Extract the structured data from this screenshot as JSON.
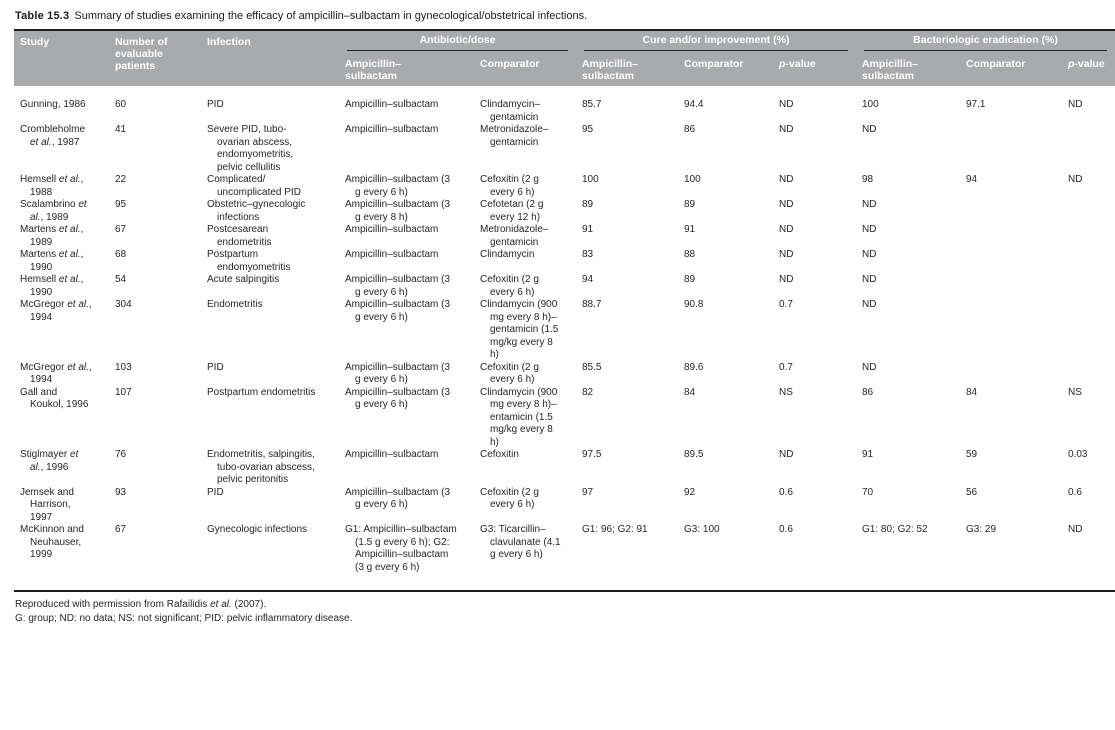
{
  "title": {
    "label": "Table 15.3",
    "text": "Summary of studies examining the efficacy of ampicillin–sulbactam in gynecological/obstetrical infections."
  },
  "colors": {
    "header_bg": "#a8aaac",
    "header_text": "#ffffff",
    "body_text": "#26262a",
    "rule": "#1c1c1e"
  },
  "header": {
    "study": "Study",
    "patients": "Number of evaluable patients",
    "infection": "Infection",
    "groups": [
      {
        "label": "Antibiotic/dose",
        "cols": [
          "Ampicillin–sulbactam",
          "Comparator"
        ]
      },
      {
        "label": "Cure and/or improvement (%)",
        "cols": [
          "Ampicillin–sulbactam",
          "Comparator",
          "p-value"
        ]
      },
      {
        "label": "Bacteriologic eradication (%)",
        "cols": [
          "Ampicillin–sulbactam",
          "Comparator",
          "p-value"
        ]
      }
    ]
  },
  "rows": [
    {
      "study": "Gunning, 1986",
      "patients": "60",
      "infection": "PID",
      "ab": "Ampicillin–sulbactam",
      "comp": "Clindamycin–gentamicin",
      "cure_ab": "85.7",
      "cure_comp": "94.4",
      "cure_p": "ND",
      "bact_ab": "100",
      "bact_comp": "97.1",
      "bact_p": "ND"
    },
    {
      "study": "Crombleholme et al., 1987",
      "patients": "41",
      "infection": "Severe PID, tubo-ovarian abscess, endomyometritis, pelvic cellulitis",
      "ab": "Ampicillin–sulbactam",
      "comp": "Metronidazole–gentamicin",
      "cure_ab": "95",
      "cure_comp": "86",
      "cure_p": "ND",
      "bact_ab": "ND",
      "bact_comp": "",
      "bact_p": ""
    },
    {
      "study": "Hemsell et al., 1988",
      "patients": "22",
      "infection": "Complicated/ uncomplicated PID",
      "ab": "Ampicillin–sulbactam (3 g every 6 h)",
      "comp": "Cefoxitin (2 g every 6 h)",
      "cure_ab": "100",
      "cure_comp": "100",
      "cure_p": "ND",
      "bact_ab": "98",
      "bact_comp": "94",
      "bact_p": "ND"
    },
    {
      "study": "Scalambrino et al., 1989",
      "patients": "95",
      "infection": "Obstetric–gynecologic infections",
      "ab": "Ampicillin–sulbactam (3 g every 8 h)",
      "comp": "Cefotetan (2 g every 12 h)",
      "cure_ab": "89",
      "cure_comp": "89",
      "cure_p": "ND",
      "bact_ab": "ND",
      "bact_comp": "",
      "bact_p": ""
    },
    {
      "study": "Martens et al., 1989",
      "patients": "67",
      "infection": "Postcesarean endometritis",
      "ab": "Ampicillin–sulbactam",
      "comp": "Metronidazole–gentamicin",
      "cure_ab": "91",
      "cure_comp": "91",
      "cure_p": "ND",
      "bact_ab": "ND",
      "bact_comp": "",
      "bact_p": ""
    },
    {
      "study": "Martens et al., 1990",
      "patients": "68",
      "infection": "Postpartum endomyometritis",
      "ab": "Ampicillin–sulbactam",
      "comp": "Clindamycin",
      "cure_ab": "83",
      "cure_comp": "88",
      "cure_p": "ND",
      "bact_ab": "ND",
      "bact_comp": "",
      "bact_p": ""
    },
    {
      "study": "Hemsell et al., 1990",
      "patients": "54",
      "infection": "Acute salpingitis",
      "ab": "Ampicillin–sulbactam (3 g every 6 h)",
      "comp": "Cefoxitin (2 g every 6 h)",
      "cure_ab": "94",
      "cure_comp": "89",
      "cure_p": "ND",
      "bact_ab": "ND",
      "bact_comp": "",
      "bact_p": ""
    },
    {
      "study": "McGregor et al., 1994",
      "patients": "304",
      "infection": "Endometritis",
      "ab": "Ampicillin–sulbactam (3 g every 6 h)",
      "comp": "Clindamycin (900 mg every 8 h)–gentamicin (1.5 mg/kg every 8 h)",
      "cure_ab": "88.7",
      "cure_comp": "90.8",
      "cure_p": "0.7",
      "bact_ab": "ND",
      "bact_comp": "",
      "bact_p": ""
    },
    {
      "study": "McGregor et al., 1994",
      "patients": "103",
      "infection": "PID",
      "ab": "Ampicillin–sulbactam (3 g every 6 h)",
      "comp": "Cefoxitin (2 g every 6 h)",
      "cure_ab": "85.5",
      "cure_comp": "89.6",
      "cure_p": "0.7",
      "bact_ab": "ND",
      "bact_comp": "",
      "bact_p": ""
    },
    {
      "study": "Gall and Koukol, 1996",
      "patients": "107",
      "infection": "Postpartum endometritis",
      "ab": "Ampicillin–sulbactam (3 g every 6 h)",
      "comp": "Clindamycin (900 mg every 8 h)–entamicin (1.5 mg/kg every 8 h)",
      "cure_ab": "82",
      "cure_comp": "84",
      "cure_p": "NS",
      "bact_ab": "86",
      "bact_comp": "84",
      "bact_p": "NS"
    },
    {
      "study": "Stiglmayer et al., 1996",
      "patients": "76",
      "infection": "Endometritis, salpingitis, tubo-ovarian abscess, pelvic peritonitis",
      "ab": "Ampicillin–sulbactam",
      "comp": "Cefoxitin",
      "cure_ab": "97.5",
      "cure_comp": "89.5",
      "cure_p": "ND",
      "bact_ab": "91",
      "bact_comp": "59",
      "bact_p": "0.03"
    },
    {
      "study": "Jemsek and Harrison, 1997",
      "patients": "93",
      "infection": "PID",
      "ab": "Ampicillin–sulbactam (3 g every 6 h)",
      "comp": "Cefoxitin (2 g every 6 h)",
      "cure_ab": "97",
      "cure_comp": "92",
      "cure_p": "0.6",
      "bact_ab": "70",
      "bact_comp": "56",
      "bact_p": "0.6"
    },
    {
      "study": "McKinnon and Neuhauser, 1999",
      "patients": "67",
      "infection": "Gynecologic infections",
      "ab": "G1: Ampicillin–sulbactam (1.5 g every 6 h); G2: Ampicillin–sulbactam (3 g every 6 h)",
      "comp": "G3: Ticarcillin–clavulanate (4.1 g every 6 h)",
      "cure_ab": "G1: 96; G2: 91",
      "cure_comp": "G3: 100",
      "cure_p": "0.6",
      "bact_ab": "G1: 80; G2: 52",
      "bact_comp": "G3: 29",
      "bact_p": "ND"
    }
  ],
  "footnotes": [
    "Reproduced with permission from Rafailidis et al. (2007).",
    "G: group; ND: no data; NS: not significant; PID: pelvic inflammatory disease."
  ]
}
